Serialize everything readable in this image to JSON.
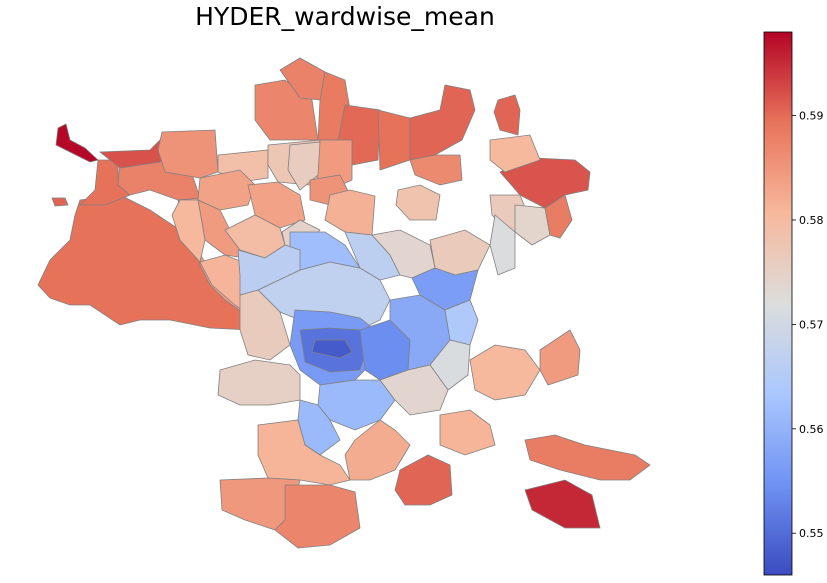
{
  "title": "HYDER_wardwise_mean",
  "colorbar": {
    "min": 0.546,
    "max": 0.598,
    "ticks": [
      "0.55",
      "0.56",
      "0.57",
      "0.58",
      "0.59"
    ],
    "tick_values": [
      0.55,
      0.56,
      0.57,
      0.58,
      0.59
    ],
    "colormap": "coolwarm",
    "stops": [
      "#3b4cc0",
      "#6f92f3",
      "#aac7fd",
      "#dcdddd",
      "#f7b89c",
      "#e7745b",
      "#b40426"
    ]
  },
  "map": {
    "edge_color": "#808080",
    "wards": [
      {
        "v": 0.5895
      },
      {
        "v": 0.584
      },
      {
        "v": 0.5875
      },
      {
        "v": 0.5895
      },
      {
        "v": 0.5978
      },
      {
        "v": 0.592
      },
      {
        "v": 0.5905
      },
      {
        "v": 0.5855
      },
      {
        "v": 0.579
      },
      {
        "v": 0.5835
      },
      {
        "v": 0.5845
      },
      {
        "v": 0.5805
      },
      {
        "v": 0.5775
      },
      {
        "v": 0.5835
      },
      {
        "v": 0.5795
      },
      {
        "v": 0.581
      },
      {
        "v": 0.5745
      },
      {
        "v": 0.5872
      },
      {
        "v": 0.5875
      },
      {
        "v": 0.5885
      },
      {
        "v": 0.5902
      },
      {
        "v": 0.5895
      },
      {
        "v": 0.5845
      },
      {
        "v": 0.576
      },
      {
        "v": 0.5855
      },
      {
        "v": 0.5905
      },
      {
        "v": 0.5865
      },
      {
        "v": 0.5815
      },
      {
        "v": 0.5782
      },
      {
        "v": 0.5905
      },
      {
        "v": 0.5918
      },
      {
        "v": 0.5805
      },
      {
        "v": 0.5765
      },
      {
        "v": 0.5742
      },
      {
        "v": 0.5882
      },
      {
        "v": 0.5718
      },
      {
        "v": 0.5672
      },
      {
        "v": 0.5618
      },
      {
        "v": 0.5665
      },
      {
        "v": 0.5738
      },
      {
        "v": 0.5765
      },
      {
        "v": 0.5562
      },
      {
        "v": 0.5508
      },
      {
        "v": 0.5478
      },
      {
        "v": 0.5542
      },
      {
        "v": 0.5585
      },
      {
        "v": 0.5612
      },
      {
        "v": 0.5565
      },
      {
        "v": 0.5642
      },
      {
        "v": 0.5715
      },
      {
        "v": 0.5738
      },
      {
        "v": 0.5752
      },
      {
        "v": 0.5762
      },
      {
        "v": 0.5662
      },
      {
        "v": 0.5612
      },
      {
        "v": 0.5812
      },
      {
        "v": 0.5848
      },
      {
        "v": 0.5872
      },
      {
        "v": 0.5822
      },
      {
        "v": 0.5905
      },
      {
        "v": 0.5952
      },
      {
        "v": 0.5812
      },
      {
        "v": 0.5805
      },
      {
        "v": 0.5845
      },
      {
        "v": 0.5882
      }
    ]
  }
}
